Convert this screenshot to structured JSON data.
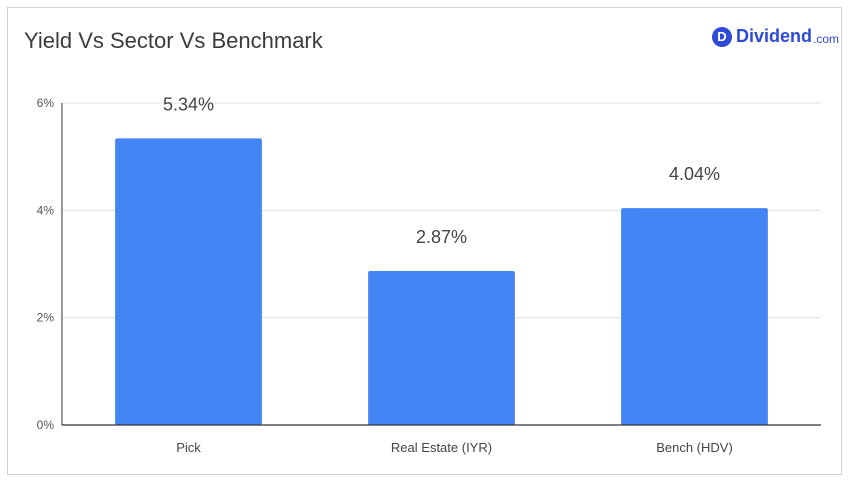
{
  "brand": {
    "letter": "D",
    "name": "Dividend",
    "tld": ".com"
  },
  "colors": {
    "bar": "#4285f4",
    "grid": "#e0e0e0",
    "axis": "#333333",
    "brand": "#2d4bd6"
  },
  "chart_data": {
    "type": "bar",
    "title": "Yield Vs Sector Vs Benchmark",
    "categories": [
      "Pick",
      "Real Estate (IYR)",
      "Bench (HDV)"
    ],
    "values": [
      5.34,
      2.87,
      4.04
    ],
    "data_labels": [
      "5.34%",
      "2.87%",
      "4.04%"
    ],
    "ylim": [
      0,
      6
    ],
    "yticks": [
      0,
      2,
      4,
      6
    ],
    "ytick_labels": [
      "0%",
      "2%",
      "4%",
      "6%"
    ],
    "xlabel": "",
    "ylabel": "",
    "grid": true,
    "legend": false
  }
}
